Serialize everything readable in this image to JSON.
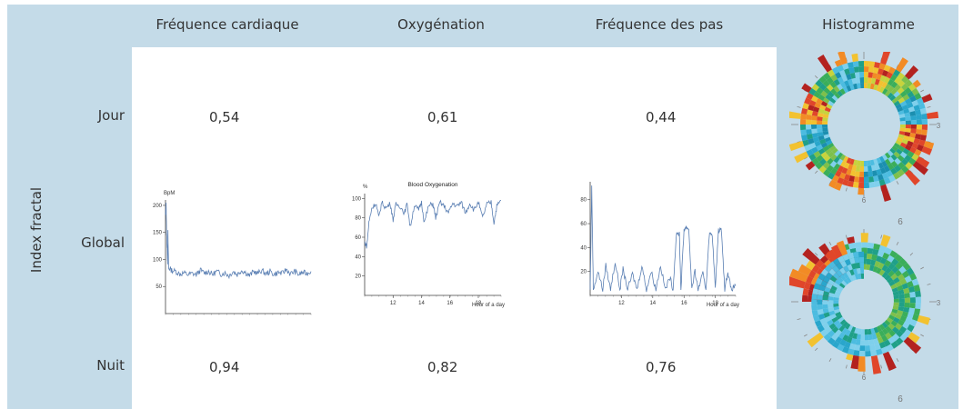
{
  "headers": {
    "heart_rate": "Fréquence cardiaque",
    "oxygenation": "Oxygénation",
    "step_rate": "Fréquence des pas",
    "histogram": "Histogramme"
  },
  "side_label": "Index fractal",
  "rows": {
    "day": {
      "label": "Jour",
      "heart_rate": "0,54",
      "oxygenation": "0,61",
      "step_rate": "0,44"
    },
    "global": {
      "label": "Global"
    },
    "night": {
      "label": "Nuit",
      "heart_rate": "0,94",
      "oxygenation": "0,82",
      "step_rate": "0,76"
    }
  },
  "colors": {
    "band": "#c4dbe8",
    "line": "#5a7fb3"
  },
  "chart_data": [
    {
      "type": "line",
      "title": "",
      "ylabel": "BpM",
      "xlabel": "",
      "ylim": [
        0,
        210
      ],
      "yticks": [
        50,
        100,
        150,
        200
      ],
      "xticks": [],
      "series": [
        {
          "points": [
            [
              0,
              180
            ],
            [
              0.3,
              205
            ],
            [
              0.5,
              150
            ],
            [
              0.8,
              120
            ],
            [
              1,
              95
            ],
            [
              1.2,
              150
            ],
            [
              1.5,
              85
            ],
            [
              3,
              80
            ],
            [
              5,
              78
            ],
            [
              7,
              73
            ],
            [
              9,
              75
            ],
            [
              11,
              72
            ],
            [
              13,
              74
            ],
            [
              15,
              72
            ],
            [
              17,
              80
            ],
            [
              19,
              75
            ],
            [
              21,
              78
            ],
            [
              23,
              72
            ],
            [
              25,
              78
            ],
            [
              27,
              73
            ],
            [
              29,
              75
            ],
            [
              31,
              70
            ],
            [
              33,
              78
            ],
            [
              35,
              72
            ],
            [
              37,
              80
            ],
            [
              39,
              76
            ],
            [
              41,
              70
            ],
            [
              43,
              78
            ],
            [
              45,
              74
            ],
            [
              47,
              80
            ],
            [
              49,
              73
            ],
            [
              51,
              78
            ],
            [
              53,
              72
            ],
            [
              55,
              76
            ],
            [
              57,
              74
            ],
            [
              59,
              82
            ],
            [
              61,
              73
            ],
            [
              63,
              78
            ],
            [
              65,
              72
            ],
            [
              67,
              76
            ],
            [
              69,
              74
            ],
            [
              71,
              78
            ]
          ]
        }
      ]
    },
    {
      "type": "line",
      "title": "Blood Oxygenation",
      "ylabel": "%",
      "xlabel": "Hour of a day",
      "ylim": [
        0,
        105
      ],
      "xlim": [
        10,
        19.6
      ],
      "yticks": [
        20,
        40,
        60,
        80,
        100
      ],
      "xticks": [
        12,
        14,
        16,
        18
      ],
      "series": [
        {
          "points": [
            [
              10,
              55
            ],
            [
              10.15,
              50
            ],
            [
              10.3,
              75
            ],
            [
              10.5,
              90
            ],
            [
              10.8,
              95
            ],
            [
              11.0,
              80
            ],
            [
              11.2,
              96
            ],
            [
              11.5,
              90
            ],
            [
              11.8,
              95
            ],
            [
              12.0,
              78
            ],
            [
              12.2,
              94
            ],
            [
              12.5,
              92
            ],
            [
              12.8,
              85
            ],
            [
              13.0,
              95
            ],
            [
              13.2,
              70
            ],
            [
              13.5,
              93
            ],
            [
              13.8,
              88
            ],
            [
              14.0,
              96
            ],
            [
              14.2,
              75
            ],
            [
              14.5,
              92
            ],
            [
              14.8,
              95
            ],
            [
              15.0,
              80
            ],
            [
              15.3,
              96
            ],
            [
              15.6,
              92
            ],
            [
              15.9,
              85
            ],
            [
              16.2,
              95
            ],
            [
              16.5,
              92
            ],
            [
              16.8,
              96
            ],
            [
              17.1,
              85
            ],
            [
              17.4,
              95
            ],
            [
              17.7,
              88
            ],
            [
              18.0,
              96
            ],
            [
              18.3,
              80
            ],
            [
              18.6,
              94
            ],
            [
              18.9,
              96
            ],
            [
              19.1,
              75
            ],
            [
              19.3,
              92
            ],
            [
              19.6,
              98
            ]
          ]
        }
      ]
    },
    {
      "type": "line",
      "title": "",
      "ylabel": "",
      "xlabel": "Hour of a day",
      "ylim": [
        0,
        95
      ],
      "xlim": [
        10,
        19.3
      ],
      "yticks": [
        20,
        40,
        60,
        80
      ],
      "xticks": [
        12,
        14,
        16,
        18
      ],
      "series": [
        {
          "points": [
            [
              10,
              5
            ],
            [
              10.1,
              90
            ],
            [
              10.2,
              5
            ],
            [
              10.5,
              20
            ],
            [
              10.8,
              5
            ],
            [
              11.0,
              25
            ],
            [
              11.3,
              5
            ],
            [
              11.6,
              28
            ],
            [
              11.9,
              5
            ],
            [
              12.1,
              22
            ],
            [
              12.4,
              5
            ],
            [
              12.7,
              18
            ],
            [
              13.0,
              5
            ],
            [
              13.3,
              25
            ],
            [
              13.6,
              5
            ],
            [
              13.9,
              20
            ],
            [
              14.2,
              5
            ],
            [
              14.5,
              25
            ],
            [
              14.8,
              5
            ],
            [
              15.1,
              15
            ],
            [
              15.3,
              5
            ],
            [
              15.5,
              50
            ],
            [
              15.7,
              52
            ],
            [
              15.8,
              5
            ],
            [
              16.0,
              55
            ],
            [
              16.1,
              57
            ],
            [
              16.3,
              56
            ],
            [
              16.5,
              5
            ],
            [
              16.7,
              20
            ],
            [
              16.9,
              5
            ],
            [
              17.2,
              18
            ],
            [
              17.4,
              5
            ],
            [
              17.6,
              50
            ],
            [
              17.8,
              52
            ],
            [
              18.0,
              5
            ],
            [
              18.2,
              55
            ],
            [
              18.4,
              54
            ],
            [
              18.6,
              5
            ],
            [
              18.8,
              20
            ],
            [
              19.0,
              5
            ],
            [
              19.3,
              8
            ]
          ]
        }
      ]
    }
  ],
  "histograms": [
    {
      "dial_labels": [
        "12",
        "3",
        "6",
        "9",
        "6"
      ]
    },
    {
      "dial_labels": [
        "12",
        "3",
        "6",
        "9",
        "6"
      ]
    }
  ]
}
